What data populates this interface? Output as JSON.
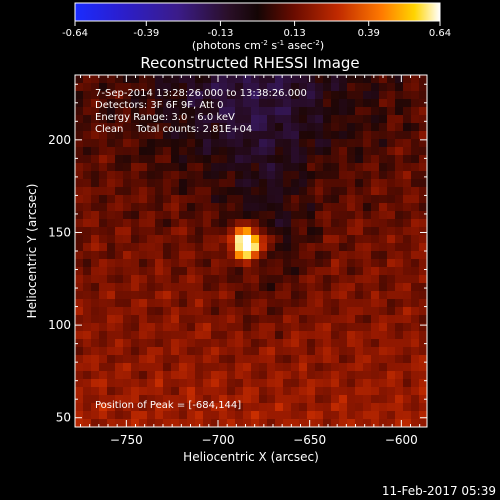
{
  "colorbar": {
    "ticks": [
      "-0.64",
      "-0.39",
      "-0.13",
      "0.13",
      "0.39",
      "0.64"
    ],
    "unit_parts": [
      "(photons cm",
      "-2",
      " s",
      "-1",
      " asec",
      "-2",
      ")"
    ]
  },
  "chart_data": {
    "type": "heatmap",
    "title": "Reconstructed RHESSI Image",
    "xlabel": "Heliocentric X (arcsec)",
    "ylabel": "Heliocentric Y (arcsec)",
    "xlim": [
      -778,
      -586
    ],
    "ylim": [
      45,
      235
    ],
    "xticks": [
      -750,
      -700,
      -650,
      -600
    ],
    "yticks": [
      50,
      100,
      150,
      200
    ],
    "colorbar_range": [
      -0.64,
      0.64
    ],
    "peak": {
      "x": -684,
      "y": 144
    },
    "annotations": [
      "7-Sep-2014 13:28:26.000 to 13:38:26.000",
      "Detectors: 3F 6F 9F, Att 0",
      "Energy Range: 3.0 - 6.0 keV",
      "Clean    Total counts: 2.81E+04",
      "Position of Peak = [-684,144]"
    ]
  },
  "footer_timestamp": "11-Feb-2017 05:39"
}
